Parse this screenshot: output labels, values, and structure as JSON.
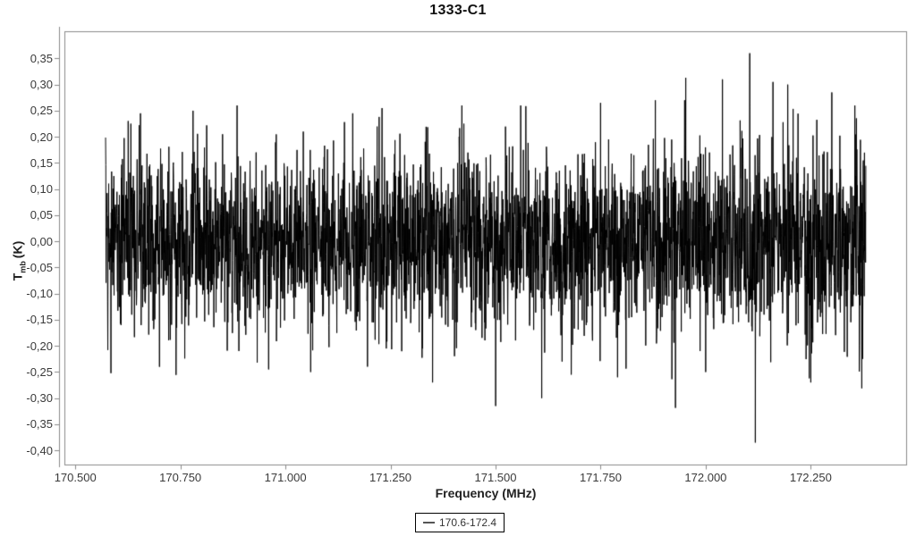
{
  "page": {
    "background": "#ffffff"
  },
  "chart_data": {
    "type": "line",
    "title": "1333-C1",
    "xlabel": "Frequency (MHz)",
    "ylabel": {
      "main": "T",
      "sub": "mb",
      "unit": "(K)"
    },
    "xlim": [
      170.474,
      172.477
    ],
    "ylim": [
      -0.427,
      0.402
    ],
    "grid": false,
    "x_ticks": {
      "values": [
        170.5,
        170.75,
        171.0,
        171.25,
        171.5,
        171.75,
        172.0,
        172.25
      ],
      "labels": [
        "170.500",
        "170.750",
        "171.000",
        "171.250",
        "171.500",
        "171.750",
        "172.000",
        "172.250"
      ]
    },
    "y_ticks": {
      "values": [
        0.35,
        0.3,
        0.25,
        0.2,
        0.15,
        0.1,
        0.05,
        0.0,
        -0.05,
        -0.1,
        -0.15,
        -0.2,
        -0.25,
        -0.3,
        -0.35,
        -0.4
      ],
      "labels": [
        "0,35",
        "0,30",
        "0,25",
        "0,20",
        "0,15",
        "0,10",
        "0,05",
        "0,00",
        "-0,05",
        "-0,10",
        "-0,15",
        "-0,20",
        "-0,25",
        "-0,30",
        "-0,35",
        "-0,40"
      ]
    },
    "legend": {
      "label": "170.6-172.4",
      "position": "bottom-center",
      "border_color": "#000000",
      "line_color": "#555555"
    },
    "colors": {
      "frame": "#8a8a8a",
      "tick": "#8a8a8a",
      "tick_label": "#3a3a3a",
      "axis_label": "#222222",
      "title": "#111111",
      "series": "#000000"
    },
    "series": [
      {
        "name": "170.6-172.4",
        "color": "#000000",
        "x_start": 170.572,
        "x_end": 172.381,
        "n_points": 3400,
        "mean": 0.0,
        "noise_sigma": 0.082,
        "sigma_ramp": {
          "start_x": 171.95,
          "end_x": 172.4,
          "end_factor": 1.18
        },
        "seed": 13331,
        "y_max": 0.36,
        "y_min": -0.385,
        "spikes": [
          [
            170.655,
            0.245
          ],
          [
            170.7,
            -0.24
          ],
          [
            170.78,
            0.25
          ],
          [
            170.885,
            0.26
          ],
          [
            170.96,
            -0.245
          ],
          [
            171.06,
            -0.25
          ],
          [
            171.16,
            0.245
          ],
          [
            171.23,
            0.255
          ],
          [
            171.35,
            -0.27
          ],
          [
            171.42,
            0.26
          ],
          [
            171.5,
            -0.315
          ],
          [
            171.56,
            0.26
          ],
          [
            171.61,
            -0.3
          ],
          [
            171.68,
            -0.255
          ],
          [
            171.75,
            0.265
          ],
          [
            171.79,
            -0.26
          ],
          [
            171.88,
            0.27
          ],
          [
            171.95,
            0.27
          ],
          [
            172.0,
            -0.25
          ],
          [
            172.04,
            0.31
          ],
          [
            172.105,
            0.36
          ],
          [
            172.118,
            -0.385
          ],
          [
            172.16,
            0.305
          ],
          [
            172.195,
            0.3
          ],
          [
            172.25,
            -0.27
          ],
          [
            172.3,
            0.285
          ],
          [
            172.355,
            0.26
          ]
        ]
      }
    ]
  }
}
